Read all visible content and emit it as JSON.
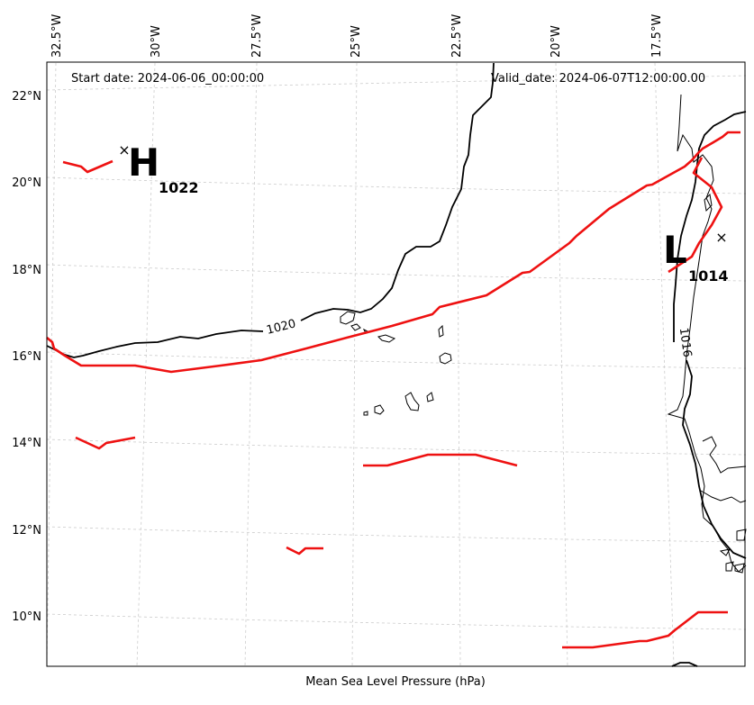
{
  "header": {
    "start_date": "Start date: 2024-06-06_00:00:00",
    "valid_date": "Valid_date: 2024-06-07T12:00:00.00"
  },
  "caption": "Mean Sea Level Pressure (hPa)",
  "longitude_labels": [
    "32.5°W",
    "30°W",
    "27.5°W",
    "25°W",
    "22.5°W",
    "20°W",
    "17.5°W"
  ],
  "latitude_labels": [
    "22°N",
    "20°N",
    "18°N",
    "16°N",
    "14°N",
    "12°N",
    "10°N"
  ],
  "pressure_centers": [
    {
      "letter": "H",
      "value": "1022"
    },
    {
      "letter": "L",
      "value": "1014"
    }
  ],
  "contour_labels": [
    "1020",
    "1016"
  ],
  "colors": {
    "isobar": "#000000",
    "front": "#ee1111",
    "grid": "#cccccc",
    "coast": "#000000"
  }
}
